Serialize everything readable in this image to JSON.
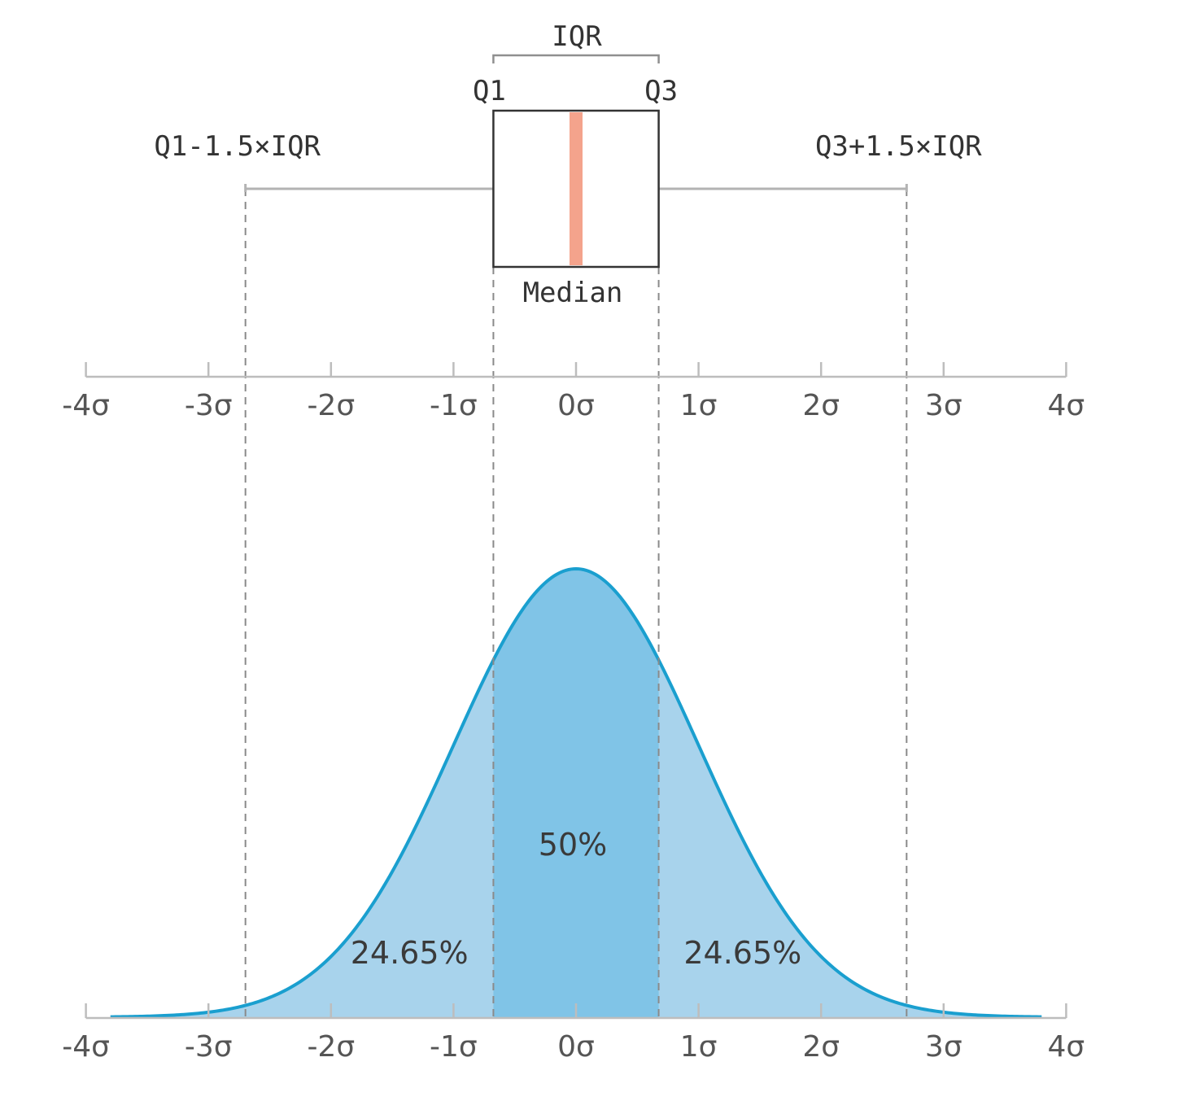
{
  "boxplot": {
    "iqr_label": "IQR",
    "q1_label": "Q1",
    "q3_label": "Q3",
    "lower_fence_label": "Q1-1.5×IQR",
    "upper_fence_label": "Q3+1.5×IQR",
    "median_label": "Median",
    "q1": -0.6745,
    "median": 0,
    "q3": 0.6745,
    "lower_fence": -2.698,
    "upper_fence": 2.698,
    "median_color": "#f4a38c"
  },
  "axis": {
    "ticks": [
      -4,
      -3,
      -2,
      -1,
      0,
      1,
      2,
      3,
      4
    ],
    "tick_labels": [
      "-4σ",
      "-3σ",
      "-2σ",
      "-1σ",
      "0σ",
      "1σ",
      "2σ",
      "3σ",
      "4σ"
    ]
  },
  "distribution": {
    "type": "normal",
    "mean": 0,
    "sd": 1,
    "x_range": [
      -3.8,
      3.8
    ],
    "center_label": "50%",
    "left_label": "24.65%",
    "right_label": "24.65%",
    "curve_color": "#1a9fcf",
    "tail_fill": "#a8d3ec",
    "center_fill": "#80c4e7"
  }
}
